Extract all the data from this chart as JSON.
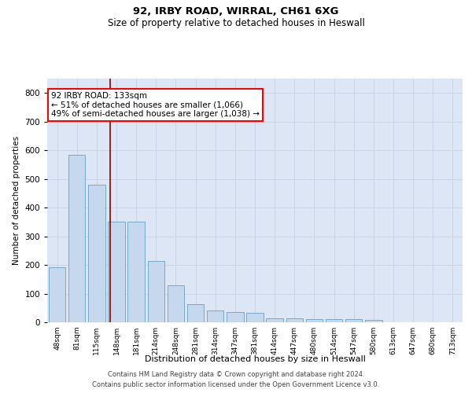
{
  "title1": "92, IRBY ROAD, WIRRAL, CH61 6XG",
  "title2": "Size of property relative to detached houses in Heswall",
  "xlabel": "Distribution of detached houses by size in Heswall",
  "ylabel": "Number of detached properties",
  "bar_color": "#c5d8ed",
  "bar_edge_color": "#6a9fc8",
  "categories": [
    "48sqm",
    "81sqm",
    "115sqm",
    "148sqm",
    "181sqm",
    "214sqm",
    "248sqm",
    "281sqm",
    "314sqm",
    "347sqm",
    "381sqm",
    "414sqm",
    "447sqm",
    "480sqm",
    "514sqm",
    "547sqm",
    "580sqm",
    "613sqm",
    "647sqm",
    "680sqm",
    "713sqm"
  ],
  "values": [
    192,
    585,
    480,
    352,
    352,
    215,
    130,
    62,
    40,
    35,
    32,
    15,
    15,
    10,
    10,
    10,
    8,
    0,
    0,
    0,
    0
  ],
  "vline_x": 2.67,
  "annotation_line1": "92 IRBY ROAD: 133sqm",
  "annotation_line2": "← 51% of detached houses are smaller (1,066)",
  "annotation_line3": "49% of semi-detached houses are larger (1,038) →",
  "annotation_box_color": "red",
  "ylim": [
    0,
    850
  ],
  "yticks": [
    0,
    100,
    200,
    300,
    400,
    500,
    600,
    700,
    800
  ],
  "grid_color": "#c8d4e8",
  "background_color": "#dce6f5",
  "footer1": "Contains HM Land Registry data © Crown copyright and database right 2024.",
  "footer2": "Contains public sector information licensed under the Open Government Licence v3.0."
}
